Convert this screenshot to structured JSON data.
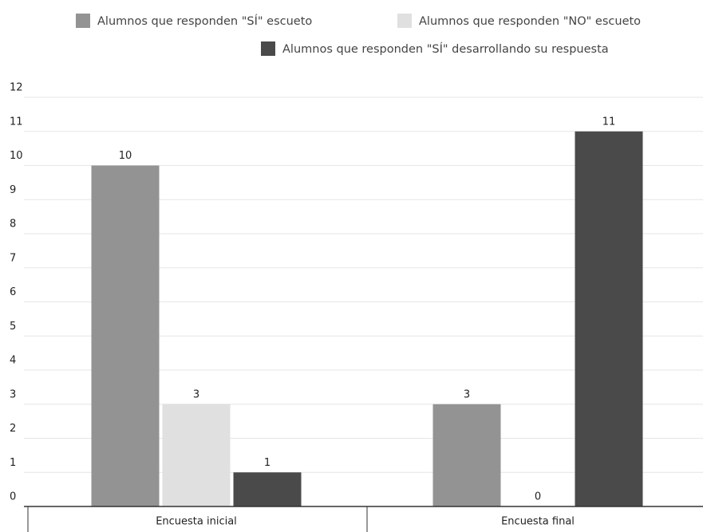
{
  "chart_data": {
    "type": "bar",
    "categories": [
      "Encuesta inicial",
      "Encuesta final"
    ],
    "series": [
      {
        "name": "Alumnos que responden \"SÍ\" escueto",
        "color": "#939393",
        "values": [
          10,
          3
        ]
      },
      {
        "name": "Alumnos que responden \"NO\" escueto",
        "color": "#e0e0e0",
        "values": [
          3,
          0
        ]
      },
      {
        "name": "Alumnos que responden \"SÍ\" desarrollando su respuesta",
        "color": "#4a4a4a",
        "values": [
          1,
          11
        ]
      }
    ],
    "ylim": [
      0,
      12
    ],
    "yticks": [
      0,
      1,
      2,
      3,
      4,
      5,
      6,
      7,
      8,
      9,
      10,
      11,
      12
    ],
    "grid": true,
    "legend": "top",
    "data_labels": true
  }
}
